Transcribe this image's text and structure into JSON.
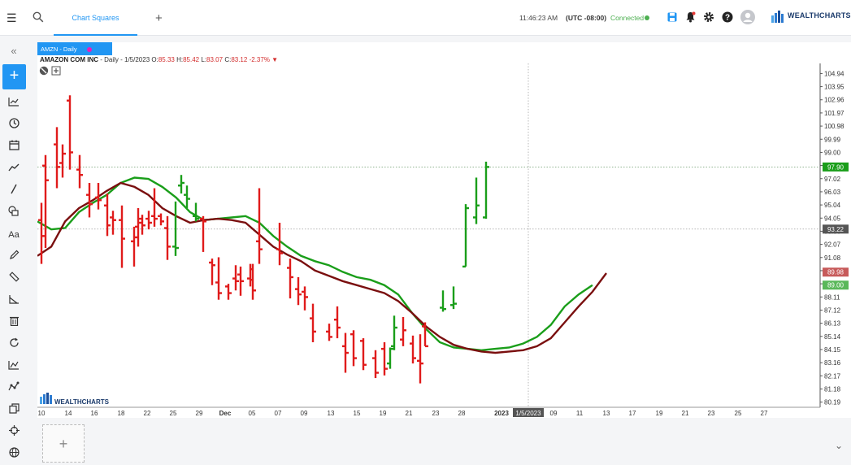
{
  "topbar": {
    "tab_label": "Chart Squares",
    "time": "11:46:23 AM",
    "timezone": "(UTC -08:00)",
    "status": "Connected",
    "brand": "WEALTHCHARTS",
    "icons": [
      "menu-icon",
      "search-icon",
      "save-icon",
      "alert-bell-icon",
      "gear-icon",
      "help-icon",
      "user-avatar-icon"
    ]
  },
  "sidebar": {
    "icons": [
      "collapse-icon",
      "add-icon",
      "chart-type-icon",
      "clock-icon",
      "calendar-icon",
      "trend-icon",
      "line-draw-icon",
      "shapes-icon",
      "text-icon",
      "pencil-icon",
      "ruler-icon",
      "angle-icon",
      "trash-icon",
      "refresh-icon",
      "indicator-icon",
      "pattern-icon",
      "layers-icon",
      "crosshair-icon",
      "globe-icon"
    ]
  },
  "chart": {
    "symbol_tab": "AMZN - Daily",
    "company": "AMAZON COM INC",
    "detail": "- Daily - 1/5/2023",
    "open_label": "O:",
    "open": "85.33",
    "high_label": "H:",
    "high": "85.42",
    "low_label": "L:",
    "low": "83.07",
    "close_label": "C:",
    "close": "83.12",
    "change": "-2.37%",
    "watermark": "WEALTHCHARTS",
    "crosshair_date": "1/5/2023",
    "colors": {
      "up": "#1a9e1a",
      "down": "#e01b1b",
      "ma_fast": "#7a0f0f",
      "ma_slow": "#1a9e1a"
    }
  },
  "chart_data": {
    "type": "ohlc",
    "y_ticks": [
      "104.94",
      "103.95",
      "102.96",
      "101.97",
      "100.98",
      "99.99",
      "99.00",
      "98.01",
      "97.02",
      "96.03",
      "95.04",
      "94.05",
      "93.06",
      "92.07",
      "91.08",
      "90.09",
      "89.10",
      "88.11",
      "87.12",
      "86.13",
      "85.14",
      "84.15",
      "83.16",
      "82.17",
      "81.18",
      "80.19"
    ],
    "ylim": [
      79.8,
      105.7
    ],
    "x_labels": [
      "10",
      "14",
      "16",
      "18",
      "22",
      "25",
      "29",
      "Dec",
      "05",
      "07",
      "09",
      "13",
      "15",
      "19",
      "21",
      "23",
      "28",
      "2023",
      "09",
      "11",
      "13",
      "17",
      "19",
      "21",
      "23",
      "25",
      "27"
    ],
    "price_tags": [
      {
        "label": "97.90",
        "value": 97.9,
        "color": "#1a9e1a"
      },
      {
        "label": "93.22",
        "value": 93.22,
        "color": "#555555"
      },
      {
        "label": "89.98",
        "value": 89.98,
        "color": "#c75a5a"
      },
      {
        "label": "89.00",
        "value": 89.0,
        "color": "#5ab85a"
      }
    ],
    "bars": [
      {
        "h": 95.2,
        "l": 90.6,
        "o": 93.9,
        "c": 92.7,
        "up": false
      },
      {
        "h": 98.8,
        "l": 91.8,
        "o": 98.0,
        "c": 96.9,
        "up": false
      },
      {
        "h": 100.9,
        "l": 96.3,
        "o": 99.6,
        "c": 97.9,
        "up": false
      },
      {
        "h": 99.6,
        "l": 97.1,
        "o": 98.2,
        "c": 98.9,
        "up": false
      },
      {
        "h": 103.3,
        "l": 97.7,
        "o": 102.9,
        "c": 99.0,
        "up": false
      },
      {
        "h": 98.8,
        "l": 96.3,
        "o": 97.7,
        "c": 97.3,
        "up": false
      },
      {
        "h": 96.7,
        "l": 94.1,
        "o": 95.8,
        "c": 95.1,
        "up": false
      },
      {
        "h": 96.7,
        "l": 94.7,
        "o": 95.6,
        "c": 95.4,
        "up": false
      },
      {
        "h": 95.9,
        "l": 92.7,
        "o": 95.0,
        "c": 93.5,
        "up": false
      },
      {
        "h": 94.6,
        "l": 92.8,
        "o": 94.1,
        "c": 93.9,
        "up": false
      },
      {
        "h": 95.0,
        "l": 90.3,
        "o": 93.9,
        "c": 92.5,
        "up": false
      },
      {
        "h": 93.4,
        "l": 90.4,
        "o": 92.3,
        "c": 92.6,
        "up": false
      },
      {
        "h": 94.8,
        "l": 91.9,
        "o": 93.4,
        "c": 93.7,
        "up": false
      },
      {
        "h": 94.3,
        "l": 92.8,
        "o": 94.0,
        "c": 93.5,
        "up": false
      },
      {
        "h": 94.6,
        "l": 93.2,
        "o": 94.0,
        "c": 93.7,
        "up": false
      },
      {
        "h": 96.3,
        "l": 93.4,
        "o": 94.2,
        "c": 94.0,
        "up": false
      },
      {
        "h": 94.4,
        "l": 93.5,
        "o": 94.2,
        "c": 93.8,
        "up": false
      },
      {
        "h": 94.2,
        "l": 90.9,
        "o": 93.3,
        "c": 91.9,
        "up": false
      },
      {
        "h": 95.3,
        "l": 91.2,
        "o": 91.9,
        "c": 91.8,
        "up": true
      },
      {
        "h": 97.3,
        "l": 95.9,
        "o": 96.5,
        "c": 96.7,
        "up": true
      },
      {
        "h": 96.5,
        "l": 94.8,
        "o": 95.8,
        "c": 95.5,
        "up": true
      },
      {
        "h": 95.2,
        "l": 93.8,
        "o": 94.2,
        "c": 94.0,
        "up": true
      },
      {
        "h": 94.2,
        "l": 91.5,
        "o": 94.0,
        "c": 93.8,
        "up": false
      },
      {
        "h": 91.0,
        "l": 89.0,
        "o": 90.7,
        "c": 90.5,
        "up": false
      },
      {
        "h": 91.1,
        "l": 87.9,
        "o": 89.2,
        "c": 88.4,
        "up": false
      },
      {
        "h": 89.1,
        "l": 87.9,
        "o": 88.9,
        "c": 88.4,
        "up": false
      },
      {
        "h": 90.5,
        "l": 88.6,
        "o": 89.5,
        "c": 89.3,
        "up": false
      },
      {
        "h": 90.4,
        "l": 88.2,
        "o": 89.8,
        "c": 89.3,
        "up": false
      },
      {
        "h": 90.6,
        "l": 88.9,
        "o": 89.5,
        "c": 89.4,
        "up": false
      },
      {
        "h": 90.6,
        "l": 87.9,
        "o": 90.2,
        "c": 88.6,
        "up": false
      },
      {
        "h": 96.3,
        "l": 90.6,
        "o": 92.3,
        "c": 91.7,
        "up": false
      },
      {
        "h": 93.7,
        "l": 90.5,
        "o": 91.7,
        "c": 91.4,
        "up": false
      },
      {
        "h": 91.0,
        "l": 88.0,
        "o": 90.3,
        "c": 89.6,
        "up": false
      },
      {
        "h": 89.6,
        "l": 87.5,
        "o": 88.7,
        "c": 88.3,
        "up": false
      },
      {
        "h": 88.9,
        "l": 87.1,
        "o": 88.5,
        "c": 88.1,
        "up": false
      },
      {
        "h": 87.6,
        "l": 84.7,
        "o": 86.5,
        "c": 85.5,
        "up": false
      },
      {
        "h": 86.1,
        "l": 84.8,
        "o": 85.5,
        "c": 85.1,
        "up": false
      },
      {
        "h": 87.4,
        "l": 85.0,
        "o": 86.4,
        "c": 85.8,
        "up": false
      },
      {
        "h": 85.4,
        "l": 82.4,
        "o": 84.4,
        "c": 83.9,
        "up": false
      },
      {
        "h": 85.6,
        "l": 82.9,
        "o": 85.3,
        "c": 83.5,
        "up": false
      },
      {
        "h": 85.0,
        "l": 82.6,
        "o": 84.8,
        "c": 83.0,
        "up": false
      },
      {
        "h": 84.1,
        "l": 82.0,
        "o": 83.5,
        "c": 82.4,
        "up": false
      },
      {
        "h": 84.7,
        "l": 82.2,
        "o": 84.2,
        "c": 82.7,
        "up": false
      },
      {
        "h": 84.3,
        "l": 82.7,
        "o": 83.1,
        "c": 84.2,
        "up": true
      },
      {
        "h": 86.7,
        "l": 84.1,
        "o": 84.4,
        "c": 85.8,
        "up": true
      },
      {
        "h": 86.6,
        "l": 84.4,
        "o": 84.9,
        "c": 85.6,
        "up": false
      },
      {
        "h": 85.2,
        "l": 83.1,
        "o": 84.6,
        "c": 83.5,
        "up": false
      },
      {
        "h": 85.3,
        "l": 81.6,
        "o": 83.3,
        "c": 83.1,
        "up": false
      },
      {
        "h": 86.2,
        "l": 84.4,
        "o": 85.9,
        "c": 84.4,
        "up": false
      },
      {
        "h": 88.6,
        "l": 87.0,
        "o": 87.3,
        "c": 87.2,
        "up": true
      },
      {
        "h": 88.9,
        "l": 87.2,
        "o": 87.5,
        "c": 87.6,
        "up": true
      },
      {
        "h": 95.1,
        "l": 90.4,
        "o": 90.4,
        "c": 94.8,
        "up": true
      },
      {
        "h": 97.1,
        "l": 93.6,
        "o": 94.1,
        "c": 95.0,
        "up": true
      },
      {
        "h": 98.3,
        "l": 94.0,
        "o": 94.1,
        "c": 97.9,
        "up": true
      }
    ],
    "ma_fast": [
      [
        0,
        91.2
      ],
      [
        2,
        91.9
      ],
      [
        4,
        93.8
      ],
      [
        6,
        94.8
      ],
      [
        8,
        95.4
      ],
      [
        10,
        96.1
      ],
      [
        12,
        96.7
      ],
      [
        14,
        96.4
      ],
      [
        16,
        95.8
      ],
      [
        18,
        94.8
      ],
      [
        20,
        94.2
      ],
      [
        22,
        93.7
      ],
      [
        24,
        93.9
      ],
      [
        26,
        94.0
      ],
      [
        28,
        93.9
      ],
      [
        30,
        93.7
      ],
      [
        32,
        92.8
      ],
      [
        34,
        91.9
      ],
      [
        36,
        91.3
      ],
      [
        38,
        90.8
      ],
      [
        40,
        90.1
      ],
      [
        42,
        89.7
      ],
      [
        44,
        89.3
      ],
      [
        46,
        89.0
      ],
      [
        48,
        88.7
      ],
      [
        50,
        88.4
      ],
      [
        52,
        87.8
      ],
      [
        54,
        86.9
      ],
      [
        56,
        85.9
      ],
      [
        58,
        85.1
      ],
      [
        60,
        84.5
      ],
      [
        62,
        84.2
      ],
      [
        64,
        84.0
      ],
      [
        66,
        83.9
      ],
      [
        68,
        84.0
      ],
      [
        70,
        84.1
      ],
      [
        72,
        84.4
      ],
      [
        74,
        85.0
      ],
      [
        76,
        86.2
      ],
      [
        78,
        87.4
      ],
      [
        80,
        88.5
      ],
      [
        82,
        89.9
      ]
    ],
    "ma_slow": [
      [
        0,
        93.8
      ],
      [
        2,
        93.2
      ],
      [
        4,
        93.3
      ],
      [
        6,
        94.5
      ],
      [
        8,
        95.2
      ],
      [
        10,
        95.8
      ],
      [
        12,
        96.7
      ],
      [
        14,
        97.1
      ],
      [
        16,
        97.0
      ],
      [
        18,
        96.4
      ],
      [
        20,
        95.6
      ],
      [
        22,
        94.5
      ],
      [
        24,
        93.9
      ],
      [
        26,
        94.0
      ],
      [
        28,
        94.1
      ],
      [
        30,
        94.2
      ],
      [
        32,
        93.7
      ],
      [
        34,
        92.7
      ],
      [
        36,
        91.9
      ],
      [
        38,
        91.2
      ],
      [
        40,
        90.8
      ],
      [
        42,
        90.5
      ],
      [
        44,
        90.0
      ],
      [
        46,
        89.6
      ],
      [
        48,
        89.4
      ],
      [
        50,
        89.0
      ],
      [
        52,
        88.3
      ],
      [
        54,
        86.9
      ],
      [
        56,
        85.7
      ],
      [
        58,
        84.7
      ],
      [
        60,
        84.3
      ],
      [
        62,
        84.2
      ],
      [
        64,
        84.1
      ],
      [
        66,
        84.2
      ],
      [
        68,
        84.3
      ],
      [
        70,
        84.6
      ],
      [
        72,
        85.1
      ],
      [
        74,
        86.0
      ],
      [
        76,
        87.4
      ],
      [
        78,
        88.3
      ],
      [
        80,
        89.0
      ]
    ]
  }
}
